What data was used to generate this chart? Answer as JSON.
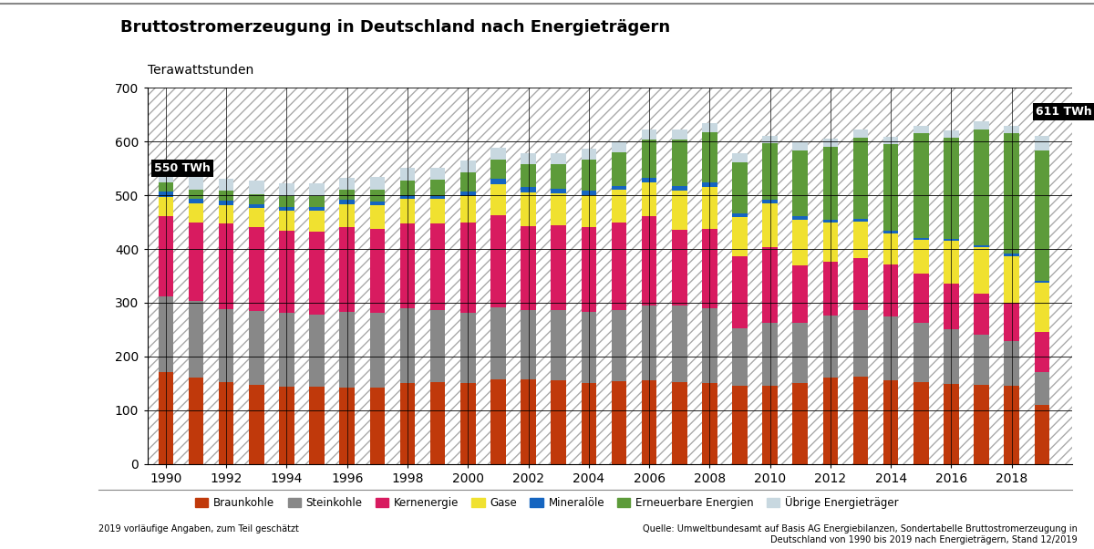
{
  "title": "Bruttostromerzeugung in Deutschland nach Energieträgern",
  "ylabel": "Terawattstunden",
  "ylim": [
    0,
    700
  ],
  "yticks": [
    0,
    100,
    200,
    300,
    400,
    500,
    600,
    700
  ],
  "years": [
    1990,
    1991,
    1992,
    1993,
    1994,
    1995,
    1996,
    1997,
    1998,
    1999,
    2000,
    2001,
    2002,
    2003,
    2004,
    2005,
    2006,
    2007,
    2008,
    2009,
    2010,
    2011,
    2012,
    2013,
    2014,
    2015,
    2016,
    2017,
    2018,
    2019
  ],
  "xticks": [
    1990,
    1992,
    1994,
    1996,
    1998,
    2000,
    2002,
    2004,
    2006,
    2008,
    2010,
    2012,
    2014,
    2016,
    2018
  ],
  "braunkohle": [
    171,
    161,
    152,
    147,
    143,
    143,
    142,
    142,
    150,
    153,
    151,
    157,
    157,
    155,
    150,
    154,
    156,
    153,
    150,
    146,
    146,
    150,
    161,
    162,
    156,
    153,
    149,
    148,
    145,
    109
  ],
  "steinkohle": [
    141,
    142,
    136,
    138,
    139,
    135,
    141,
    140,
    139,
    133,
    130,
    135,
    129,
    132,
    133,
    133,
    138,
    141,
    140,
    107,
    116,
    112,
    116,
    124,
    118,
    110,
    102,
    93,
    83,
    62
  ],
  "kernenergie": [
    149,
    147,
    159,
    155,
    152,
    154,
    158,
    155,
    158,
    161,
    169,
    171,
    157,
    157,
    157,
    163,
    167,
    141,
    148,
    134,
    141,
    108,
    99,
    97,
    97,
    92,
    84,
    76,
    72,
    75
  ],
  "gase": [
    36,
    35,
    35,
    37,
    37,
    39,
    43,
    45,
    47,
    47,
    49,
    58,
    63,
    59,
    60,
    60,
    63,
    73,
    78,
    73,
    82,
    84,
    73,
    68,
    58,
    62,
    80,
    86,
    87,
    91
  ],
  "mineraloele": [
    10,
    9,
    8,
    7,
    7,
    7,
    7,
    6,
    6,
    5,
    8,
    10,
    9,
    9,
    9,
    8,
    8,
    9,
    8,
    6,
    7,
    7,
    6,
    5,
    5,
    4,
    4,
    4,
    4,
    4
  ],
  "erneuerbare": [
    17,
    17,
    19,
    18,
    20,
    21,
    20,
    22,
    28,
    30,
    35,
    36,
    43,
    46,
    57,
    62,
    72,
    87,
    93,
    95,
    105,
    123,
    136,
    152,
    161,
    195,
    188,
    216,
    225,
    243
  ],
  "uebrige": [
    25,
    27,
    22,
    26,
    25,
    23,
    22,
    24,
    24,
    22,
    22,
    22,
    20,
    21,
    20,
    20,
    19,
    18,
    18,
    18,
    14,
    14,
    14,
    14,
    14,
    14,
    14,
    14,
    13,
    27
  ],
  "colors": {
    "braunkohle": "#C0390B",
    "steinkohle": "#888888",
    "kernenergie": "#D81B60",
    "gase": "#F0E130",
    "mineraloele": "#1565C0",
    "erneuerbare": "#5D9B3A",
    "uebrige": "#C8D8E0"
  },
  "annotation_1990": "550 TWh",
  "annotation_2019": "611 TWh",
  "footnote_left": "2019 vorläufige Angaben, zum Teil geschätzt",
  "footnote_right": "Quelle: Umweltbundesamt auf Basis AG Energiebilanzen, Sondertabelle Bruttostromerzeugung in\nDeutschland von 1990 bis 2019 nach Energieträgern, Stand 12/2019",
  "background_color": "#FFFFFF"
}
